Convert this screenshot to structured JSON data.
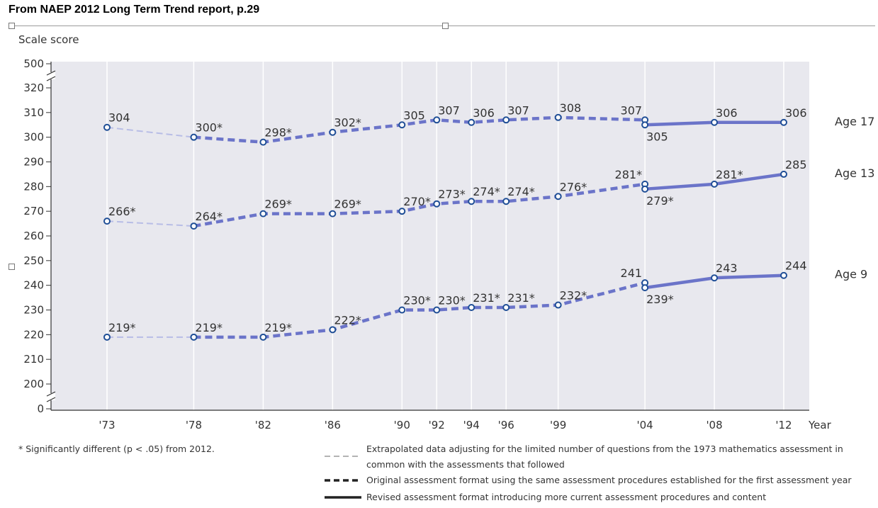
{
  "page_title": "From NAEP 2012 Long Term Trend report, p.29",
  "colors": {
    "plot_bg": "#e8e8ee",
    "line": "#6b74c9",
    "marker_stroke": "#1f4e96",
    "grid": "#ffffff"
  },
  "chart_data": {
    "type": "line",
    "ylabel": "Scale score",
    "xlabel": "Year",
    "y_ticks": [
      "500",
      "320",
      "310",
      "300",
      "290",
      "280",
      "270",
      "260",
      "250",
      "240",
      "230",
      "220",
      "210",
      "200",
      "0"
    ],
    "y_axis_break": "0–200 and 320–500 compressed",
    "categories": [
      "'73",
      "'78",
      "'82",
      "'86",
      "'90",
      "'92",
      "'94",
      "'96",
      "'99",
      "'04",
      "'08",
      "'12"
    ],
    "grid": "vertical lines at each year",
    "series": [
      {
        "name": "Age 17",
        "original": [
          {
            "x": "'73",
            "y": 304,
            "label": "304"
          },
          {
            "x": "'78",
            "y": 300,
            "label": "300*"
          },
          {
            "x": "'82",
            "y": 298,
            "label": "298*"
          },
          {
            "x": "'86",
            "y": 302,
            "label": "302*"
          },
          {
            "x": "'90",
            "y": 305,
            "label": "305"
          },
          {
            "x": "'92",
            "y": 307,
            "label": "307"
          },
          {
            "x": "'94",
            "y": 306,
            "label": "306"
          },
          {
            "x": "'96",
            "y": 307,
            "label": "307"
          },
          {
            "x": "'99",
            "y": 308,
            "label": "308"
          },
          {
            "x": "'04",
            "y": 307,
            "label": "307"
          }
        ],
        "revised": [
          {
            "x": "'04",
            "y": 305,
            "label": "305"
          },
          {
            "x": "'08",
            "y": 306,
            "label": "306"
          },
          {
            "x": "'12",
            "y": 306,
            "label": "306"
          }
        ]
      },
      {
        "name": "Age 13",
        "original": [
          {
            "x": "'73",
            "y": 266,
            "label": "266*"
          },
          {
            "x": "'78",
            "y": 264,
            "label": "264*"
          },
          {
            "x": "'82",
            "y": 269,
            "label": "269*"
          },
          {
            "x": "'86",
            "y": 269,
            "label": "269*"
          },
          {
            "x": "'90",
            "y": 270,
            "label": "270*"
          },
          {
            "x": "'92",
            "y": 273,
            "label": "273*"
          },
          {
            "x": "'94",
            "y": 274,
            "label": "274*"
          },
          {
            "x": "'96",
            "y": 274,
            "label": "274*"
          },
          {
            "x": "'99",
            "y": 276,
            "label": "276*"
          },
          {
            "x": "'04",
            "y": 281,
            "label": "281*"
          }
        ],
        "revised": [
          {
            "x": "'04",
            "y": 279,
            "label": "279*"
          },
          {
            "x": "'08",
            "y": 281,
            "label": "281*"
          },
          {
            "x": "'12",
            "y": 285,
            "label": "285"
          }
        ]
      },
      {
        "name": "Age 9",
        "original": [
          {
            "x": "'73",
            "y": 219,
            "label": "219*"
          },
          {
            "x": "'78",
            "y": 219,
            "label": "219*"
          },
          {
            "x": "'82",
            "y": 219,
            "label": "219*"
          },
          {
            "x": "'86",
            "y": 222,
            "label": "222*"
          },
          {
            "x": "'90",
            "y": 230,
            "label": "230*"
          },
          {
            "x": "'92",
            "y": 230,
            "label": "230*"
          },
          {
            "x": "'94",
            "y": 231,
            "label": "231*"
          },
          {
            "x": "'96",
            "y": 231,
            "label": "231*"
          },
          {
            "x": "'99",
            "y": 232,
            "label": "232*"
          },
          {
            "x": "'04",
            "y": 241,
            "label": "241"
          }
        ],
        "revised": [
          {
            "x": "'04",
            "y": 239,
            "label": "239*"
          },
          {
            "x": "'08",
            "y": 243,
            "label": "243"
          },
          {
            "x": "'12",
            "y": 244,
            "label": "244"
          }
        ]
      }
    ],
    "footnote": "* Significantly different (p < .05) from 2012.",
    "legend": [
      {
        "style": "extrapolated",
        "text_lines": [
          "Extrapolated data adjusting for the limited number of questions from the 1973 mathematics assessment in",
          "common with the assessments that followed"
        ]
      },
      {
        "style": "original",
        "text_lines": [
          "Original assessment format using the same assessment procedures established for the first assessment year"
        ]
      },
      {
        "style": "revised",
        "text_lines": [
          "Revised assessment format introducing more current assessment procedures and content"
        ]
      }
    ]
  }
}
